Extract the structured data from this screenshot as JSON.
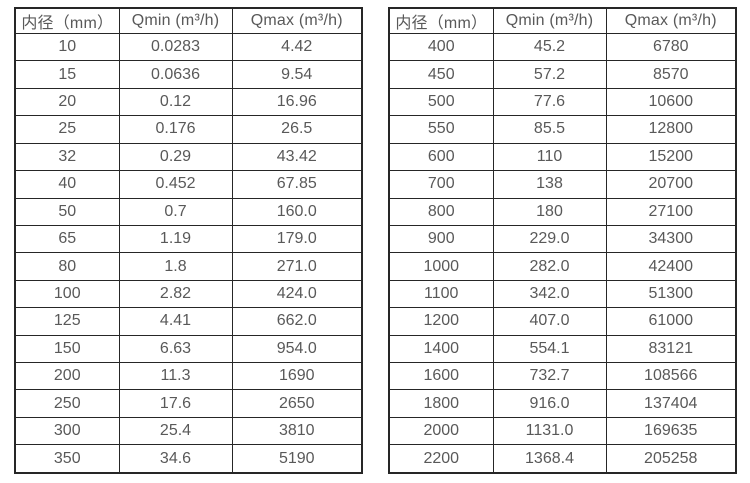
{
  "page": {
    "background": "#ffffff",
    "text_color": "#595959",
    "border_color": "#262626"
  },
  "tables": [
    {
      "name": "flow-table-small-diameters",
      "headers": [
        "内径（mm）",
        "Qmin (m³/h)",
        "Qmax (m³/h)"
      ],
      "rows": [
        [
          "10",
          "0.0283",
          "4.42"
        ],
        [
          "15",
          "0.0636",
          "9.54"
        ],
        [
          "20",
          "0.12",
          "16.96"
        ],
        [
          "25",
          "0.176",
          "26.5"
        ],
        [
          "32",
          "0.29",
          "43.42"
        ],
        [
          "40",
          "0.452",
          "67.85"
        ],
        [
          "50",
          "0.7",
          "160.0"
        ],
        [
          "65",
          "1.19",
          "179.0"
        ],
        [
          "80",
          "1.8",
          "271.0"
        ],
        [
          "100",
          "2.82",
          "424.0"
        ],
        [
          "125",
          "4.41",
          "662.0"
        ],
        [
          "150",
          "6.63",
          "954.0"
        ],
        [
          "200",
          "11.3",
          "1690"
        ],
        [
          "250",
          "17.6",
          "2650"
        ],
        [
          "300",
          "25.4",
          "3810"
        ],
        [
          "350",
          "34.6",
          "5190"
        ]
      ]
    },
    {
      "name": "flow-table-large-diameters",
      "headers": [
        "内径（mm）",
        "Qmin (m³/h)",
        "Qmax (m³/h)"
      ],
      "rows": [
        [
          "400",
          "45.2",
          "6780"
        ],
        [
          "450",
          "57.2",
          "8570"
        ],
        [
          "500",
          "77.6",
          "10600"
        ],
        [
          "550",
          "85.5",
          "12800"
        ],
        [
          "600",
          "110",
          "15200"
        ],
        [
          "700",
          "138",
          "20700"
        ],
        [
          "800",
          "180",
          "27100"
        ],
        [
          "900",
          "229.0",
          "34300"
        ],
        [
          "1000",
          "282.0",
          "42400"
        ],
        [
          "1100",
          "342.0",
          "51300"
        ],
        [
          "1200",
          "407.0",
          "61000"
        ],
        [
          "1400",
          "554.1",
          "83121"
        ],
        [
          "1600",
          "732.7",
          "108566"
        ],
        [
          "1800",
          "916.0",
          "137404"
        ],
        [
          "2000",
          "1131.0",
          "169635"
        ],
        [
          "2200",
          "1368.4",
          "205258"
        ]
      ]
    }
  ]
}
